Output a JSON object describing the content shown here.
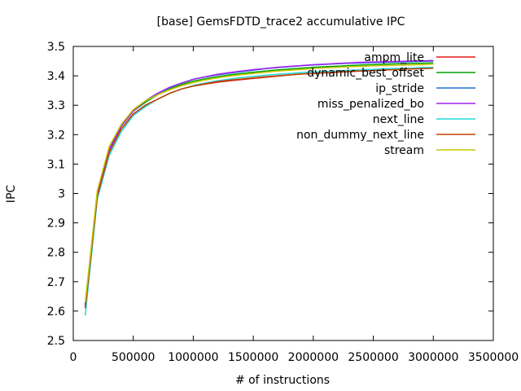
{
  "chart_data": {
    "type": "line",
    "title": "[base] GemsFDTD_trace2 accumulative IPC",
    "xlabel": "# of instructions",
    "ylabel": "IPC",
    "xlim": [
      0,
      3500000
    ],
    "ylim": [
      2.5,
      3.5
    ],
    "xticks": [
      0,
      500000,
      1000000,
      1500000,
      2000000,
      2500000,
      3000000,
      3500000
    ],
    "yticks": [
      2.5,
      2.6,
      2.7,
      2.8,
      2.9,
      3,
      3.1,
      3.2,
      3.3,
      3.4,
      3.5
    ],
    "grid": false,
    "legend_position": "top-right",
    "x": [
      100000,
      200000,
      300000,
      400000,
      500000,
      600000,
      700000,
      800000,
      900000,
      1000000,
      1100000,
      1200000,
      1300000,
      1400000,
      1500000,
      1600000,
      1700000,
      1800000,
      1900000,
      2000000,
      2100000,
      2200000,
      2300000,
      2400000,
      2500000,
      2600000,
      2700000,
      2800000,
      2900000,
      3000000
    ],
    "series": [
      {
        "name": "ampm_lite",
        "color": "#e41a1c",
        "values": [
          2.61,
          2.99,
          3.14,
          3.22,
          3.27,
          3.3,
          3.32,
          3.34,
          3.355,
          3.365,
          3.372,
          3.378,
          3.383,
          3.387,
          3.391,
          3.395,
          3.399,
          3.403,
          3.406,
          3.409,
          3.411,
          3.413,
          3.415,
          3.417,
          3.419,
          3.421,
          3.423,
          3.425,
          3.426,
          3.428
        ]
      },
      {
        "name": "dynamic_best_offset",
        "color": "#00a000",
        "values": [
          2.62,
          3.0,
          3.15,
          3.23,
          3.28,
          3.31,
          3.335,
          3.355,
          3.37,
          3.382,
          3.39,
          3.397,
          3.403,
          3.408,
          3.412,
          3.416,
          3.42,
          3.423,
          3.426,
          3.429,
          3.431,
          3.433,
          3.435,
          3.437,
          3.438,
          3.44,
          3.441,
          3.442,
          3.443,
          3.444
        ]
      },
      {
        "name": "ip_stride",
        "color": "#1f6fd1",
        "values": [
          2.62,
          3.0,
          3.15,
          3.23,
          3.28,
          3.315,
          3.34,
          3.36,
          3.375,
          3.388,
          3.396,
          3.403,
          3.409,
          3.414,
          3.419,
          3.424,
          3.428,
          3.431,
          3.434,
          3.437,
          3.439,
          3.441,
          3.443,
          3.444,
          3.445,
          3.446,
          3.447,
          3.448,
          3.449,
          3.45
        ]
      },
      {
        "name": "miss_penalized_bo",
        "color": "#a020f0",
        "values": [
          2.62,
          3.0,
          3.15,
          3.23,
          3.28,
          3.315,
          3.34,
          3.36,
          3.375,
          3.388,
          3.397,
          3.405,
          3.411,
          3.416,
          3.421,
          3.425,
          3.429,
          3.432,
          3.435,
          3.438,
          3.44,
          3.442,
          3.444,
          3.446,
          3.447,
          3.448,
          3.449,
          3.45,
          3.451,
          3.452
        ]
      },
      {
        "name": "next_line",
        "color": "#20d8d8",
        "values": [
          2.585,
          2.98,
          3.13,
          3.21,
          3.265,
          3.295,
          3.32,
          3.34,
          3.355,
          3.367,
          3.376,
          3.383,
          3.389,
          3.394,
          3.398,
          3.402,
          3.405,
          3.408,
          3.411,
          3.413,
          3.415,
          3.417,
          3.419,
          3.421,
          3.422,
          3.424,
          3.425,
          3.426,
          3.428,
          3.429
        ]
      },
      {
        "name": "non_dummy_next_line",
        "color": "#c04000",
        "values": [
          2.61,
          2.99,
          3.14,
          3.22,
          3.27,
          3.3,
          3.32,
          3.34,
          3.355,
          3.365,
          3.373,
          3.38,
          3.385,
          3.389,
          3.393,
          3.397,
          3.4,
          3.403,
          3.406,
          3.408,
          3.41,
          3.412,
          3.414,
          3.416,
          3.418,
          3.42,
          3.421,
          3.423,
          3.424,
          3.426
        ]
      },
      {
        "name": "stream",
        "color": "#c8c800",
        "values": [
          2.63,
          3.01,
          3.16,
          3.235,
          3.285,
          3.315,
          3.335,
          3.352,
          3.366,
          3.377,
          3.386,
          3.393,
          3.399,
          3.404,
          3.408,
          3.412,
          3.416,
          3.419,
          3.422,
          3.425,
          3.427,
          3.429,
          3.431,
          3.432,
          3.434,
          3.435,
          3.436,
          3.437,
          3.438,
          3.439
        ]
      }
    ]
  }
}
